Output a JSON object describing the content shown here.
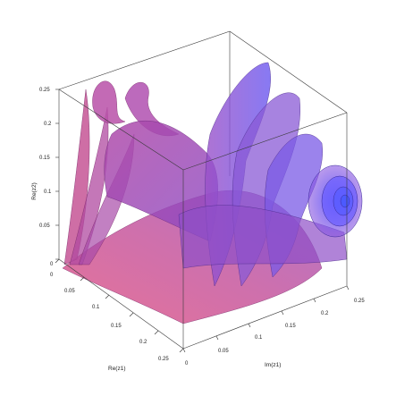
{
  "figure": {
    "axis_labels": {
      "vertical": "Re(z2)",
      "left_depth": "Re(z1)",
      "right_depth": "Im(z1)"
    },
    "vertical_ticks": [
      "0.25",
      "0.2",
      "0.15",
      "0.1",
      "0.05",
      "0"
    ],
    "left_depth_ticks": [
      "0",
      "0.05",
      "0.1",
      "0.15",
      "0.2",
      "0.25"
    ],
    "right_depth_ticks": [
      "0",
      "0.05",
      "0.1",
      "0.15",
      "0.2",
      "0.25"
    ],
    "colors": {
      "surface_pink": "#d0508a",
      "surface_magenta": "#b04ab0",
      "surface_violet": "#8a5ad6",
      "surface_blue": "#6a5cff",
      "box_edge": "#3a3a3a"
    }
  }
}
